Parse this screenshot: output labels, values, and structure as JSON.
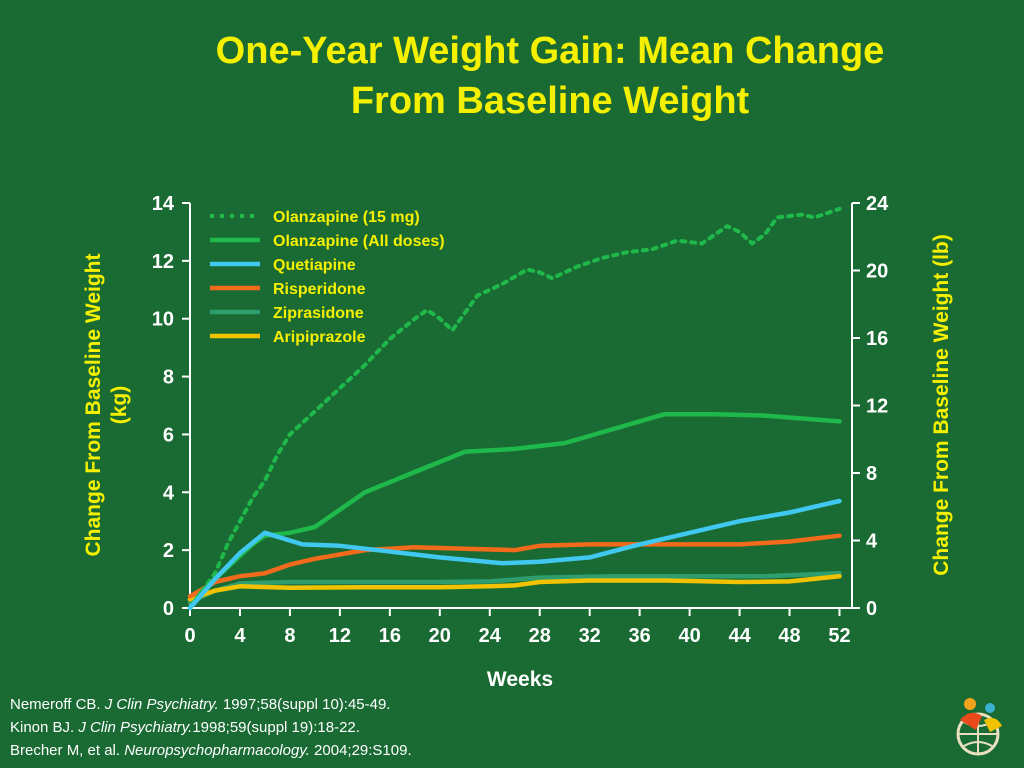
{
  "slide": {
    "title_line1": "One-Year Weight Gain: Mean Change",
    "title_line2": "From Baseline Weight",
    "references": [
      {
        "pre": "Nemeroff CB. ",
        "journal": "J Clin Psychiatry.",
        "post": " 1997;58(suppl 10):45-49."
      },
      {
        "pre": "Kinon BJ. ",
        "journal": "J Clin Psychiatry.",
        "post": "1998;59(suppl 19):18-22."
      },
      {
        "pre": "Brecher M, et al. ",
        "journal": "Neuropsychopharmacology.",
        "post": " 2004;29:S109."
      }
    ]
  },
  "colors": {
    "background": "#1a6b33",
    "title": "#f5f000",
    "axis_text": "#ffffff",
    "label_text": "#f5f000"
  },
  "chart_data": {
    "type": "line",
    "xlabel": "Weeks",
    "ylabel_left": "Change From Baseline Weight (kg)",
    "ylabel_right": "Change From Baseline Weight (lb)",
    "xlim": [
      0,
      53
    ],
    "ylim_left": [
      0,
      14
    ],
    "ylim_right": [
      0,
      24
    ],
    "x_ticks": [
      0,
      4,
      8,
      12,
      16,
      20,
      24,
      28,
      32,
      36,
      40,
      44,
      48,
      52
    ],
    "y_ticks_left": [
      0,
      2,
      4,
      6,
      8,
      10,
      12,
      14
    ],
    "y_ticks_right": [
      0,
      4,
      8,
      12,
      16,
      20,
      24
    ],
    "legend_position": "top-left",
    "series": [
      {
        "name": "Olanzapine (15 mg)",
        "color": "#1fb84a",
        "style": "dotted",
        "points": [
          [
            0,
            0
          ],
          [
            2,
            1.2
          ],
          [
            3,
            2.2
          ],
          [
            5,
            3.8
          ],
          [
            6,
            4.4
          ],
          [
            7,
            5.3
          ],
          [
            8,
            6.0
          ],
          [
            10,
            6.8
          ],
          [
            12,
            7.6
          ],
          [
            14,
            8.4
          ],
          [
            16,
            9.3
          ],
          [
            18,
            10.0
          ],
          [
            19,
            10.3
          ],
          [
            20,
            10.0
          ],
          [
            21,
            9.6
          ],
          [
            23,
            10.8
          ],
          [
            25,
            11.2
          ],
          [
            27,
            11.7
          ],
          [
            28,
            11.6
          ],
          [
            29,
            11.4
          ],
          [
            31,
            11.8
          ],
          [
            33,
            12.1
          ],
          [
            35,
            12.3
          ],
          [
            37,
            12.4
          ],
          [
            39,
            12.7
          ],
          [
            41,
            12.6
          ],
          [
            43,
            13.2
          ],
          [
            44,
            13.0
          ],
          [
            45,
            12.6
          ],
          [
            46,
            12.9
          ],
          [
            47,
            13.5
          ],
          [
            49,
            13.6
          ],
          [
            50,
            13.5
          ],
          [
            52,
            13.8
          ]
        ]
      },
      {
        "name": "Olanzapine (All doses)",
        "color": "#1fb84a",
        "style": "solid",
        "points": [
          [
            0,
            0
          ],
          [
            1,
            0.6
          ],
          [
            3,
            1.4
          ],
          [
            5,
            2.2
          ],
          [
            6,
            2.5
          ],
          [
            8,
            2.6
          ],
          [
            10,
            2.8
          ],
          [
            14,
            4.0
          ],
          [
            18,
            4.7
          ],
          [
            22,
            5.4
          ],
          [
            26,
            5.5
          ],
          [
            30,
            5.7
          ],
          [
            34,
            6.2
          ],
          [
            38,
            6.7
          ],
          [
            42,
            6.7
          ],
          [
            46,
            6.65
          ],
          [
            52,
            6.45
          ]
        ]
      },
      {
        "name": "Quetiapine",
        "color": "#40c8f0",
        "style": "solid",
        "points": [
          [
            0,
            0
          ],
          [
            2,
            1.0
          ],
          [
            4,
            1.9
          ],
          [
            6,
            2.6
          ],
          [
            9,
            2.2
          ],
          [
            12,
            2.15
          ],
          [
            15,
            2.0
          ],
          [
            20,
            1.75
          ],
          [
            25,
            1.55
          ],
          [
            28,
            1.6
          ],
          [
            32,
            1.75
          ],
          [
            36,
            2.2
          ],
          [
            40,
            2.6
          ],
          [
            44,
            3.0
          ],
          [
            48,
            3.3
          ],
          [
            52,
            3.7
          ]
        ]
      },
      {
        "name": "Risperidone",
        "color": "#f26a1b",
        "style": "solid",
        "points": [
          [
            0,
            0.4
          ],
          [
            2,
            0.9
          ],
          [
            4,
            1.1
          ],
          [
            6,
            1.2
          ],
          [
            8,
            1.5
          ],
          [
            10,
            1.7
          ],
          [
            14,
            2.0
          ],
          [
            18,
            2.1
          ],
          [
            22,
            2.05
          ],
          [
            26,
            2.0
          ],
          [
            28,
            2.15
          ],
          [
            32,
            2.2
          ],
          [
            38,
            2.2
          ],
          [
            44,
            2.2
          ],
          [
            48,
            2.3
          ],
          [
            52,
            2.5
          ]
        ]
      },
      {
        "name": "Ziprasidone",
        "color": "#2e9e6e",
        "style": "solid",
        "points": [
          [
            0,
            0.2
          ],
          [
            2,
            0.6
          ],
          [
            4,
            0.85
          ],
          [
            8,
            0.9
          ],
          [
            14,
            0.9
          ],
          [
            20,
            0.9
          ],
          [
            24,
            0.92
          ],
          [
            28,
            1.05
          ],
          [
            34,
            1.1
          ],
          [
            40,
            1.1
          ],
          [
            46,
            1.1
          ],
          [
            52,
            1.2
          ]
        ]
      },
      {
        "name": "Aripiprazole",
        "color": "#f2c200",
        "style": "solid",
        "points": [
          [
            0,
            0.3
          ],
          [
            2,
            0.6
          ],
          [
            4,
            0.75
          ],
          [
            8,
            0.7
          ],
          [
            14,
            0.72
          ],
          [
            20,
            0.72
          ],
          [
            24,
            0.75
          ],
          [
            26,
            0.78
          ],
          [
            28,
            0.9
          ],
          [
            32,
            0.95
          ],
          [
            38,
            0.95
          ],
          [
            44,
            0.9
          ],
          [
            48,
            0.92
          ],
          [
            52,
            1.1
          ]
        ]
      }
    ]
  }
}
